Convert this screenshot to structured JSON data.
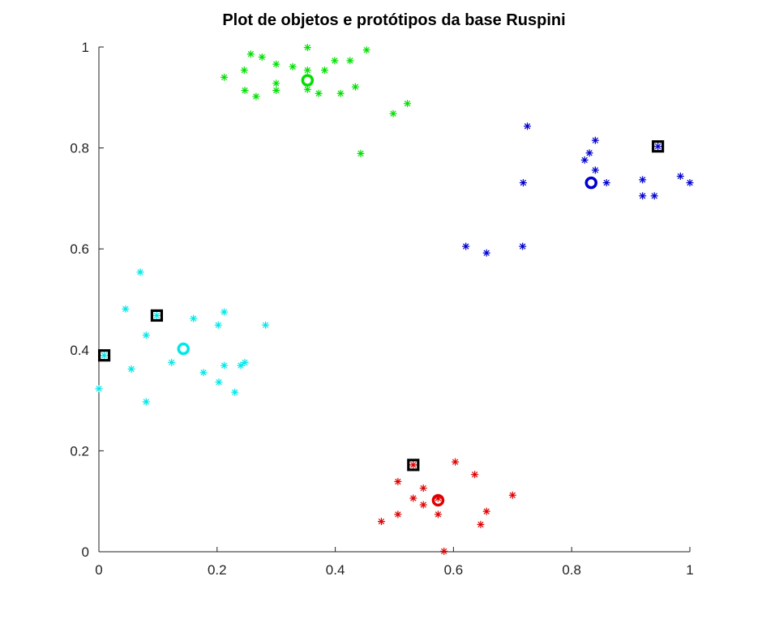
{
  "chart_data": {
    "type": "scatter",
    "title": "Plot de objetos e protótipos da base Ruspini",
    "xlabel": "",
    "ylabel": "",
    "xlim": [
      0,
      1
    ],
    "ylim": [
      0,
      1
    ],
    "xticks": [
      "0",
      "0.2",
      "0.4",
      "0.6",
      "0.8",
      "1"
    ],
    "yticks": [
      "0",
      "0.2",
      "0.4",
      "0.6",
      "0.8",
      "1"
    ],
    "grid": false,
    "series": [
      {
        "color": "#00e000",
        "marker": "asterisk",
        "points": [
          [
            0.212,
            0.94
          ],
          [
            0.246,
            0.954
          ],
          [
            0.257,
            0.986
          ],
          [
            0.276,
            0.98
          ],
          [
            0.3,
            0.966
          ],
          [
            0.328,
            0.961
          ],
          [
            0.353,
            0.999
          ],
          [
            0.353,
            0.954
          ],
          [
            0.382,
            0.954
          ],
          [
            0.399,
            0.973
          ],
          [
            0.425,
            0.973
          ],
          [
            0.453,
            0.994
          ],
          [
            0.247,
            0.914
          ],
          [
            0.266,
            0.902
          ],
          [
            0.3,
            0.928
          ],
          [
            0.3,
            0.914
          ],
          [
            0.353,
            0.916
          ],
          [
            0.372,
            0.908
          ],
          [
            0.409,
            0.908
          ],
          [
            0.434,
            0.921
          ],
          [
            0.498,
            0.868
          ],
          [
            0.522,
            0.888
          ],
          [
            0.443,
            0.789
          ]
        ]
      },
      {
        "color": "#0000d0",
        "marker": "asterisk",
        "points": [
          [
            0.725,
            0.843
          ],
          [
            0.84,
            0.815
          ],
          [
            0.83,
            0.79
          ],
          [
            0.822,
            0.776
          ],
          [
            0.84,
            0.756
          ],
          [
            0.718,
            0.731
          ],
          [
            0.859,
            0.731
          ],
          [
            0.92,
            0.737
          ],
          [
            0.984,
            0.744
          ],
          [
            1.0,
            0.731
          ],
          [
            0.92,
            0.705
          ],
          [
            0.94,
            0.705
          ],
          [
            0.946,
            0.803
          ],
          [
            0.621,
            0.605
          ],
          [
            0.656,
            0.592
          ],
          [
            0.717,
            0.605
          ]
        ]
      },
      {
        "color": "#00e8e8",
        "marker": "asterisk",
        "points": [
          [
            0.07,
            0.554
          ],
          [
            0.045,
            0.481
          ],
          [
            0.098,
            0.468
          ],
          [
            0.16,
            0.462
          ],
          [
            0.212,
            0.475
          ],
          [
            0.202,
            0.449
          ],
          [
            0.282,
            0.449
          ],
          [
            0.08,
            0.429
          ],
          [
            0.009,
            0.389
          ],
          [
            0.123,
            0.375
          ],
          [
            0.212,
            0.369
          ],
          [
            0.24,
            0.369
          ],
          [
            0.247,
            0.375
          ],
          [
            0.055,
            0.362
          ],
          [
            0.177,
            0.355
          ],
          [
            0.203,
            0.336
          ],
          [
            0.23,
            0.316
          ],
          [
            0.0,
            0.323
          ],
          [
            0.08,
            0.297
          ]
        ]
      },
      {
        "color": "#e00000",
        "marker": "asterisk",
        "points": [
          [
            0.532,
            0.172
          ],
          [
            0.603,
            0.178
          ],
          [
            0.636,
            0.153
          ],
          [
            0.506,
            0.139
          ],
          [
            0.549,
            0.126
          ],
          [
            0.7,
            0.112
          ],
          [
            0.532,
            0.106
          ],
          [
            0.574,
            0.106
          ],
          [
            0.549,
            0.093
          ],
          [
            0.656,
            0.08
          ],
          [
            0.506,
            0.074
          ],
          [
            0.574,
            0.074
          ],
          [
            0.478,
            0.06
          ],
          [
            0.646,
            0.054
          ],
          [
            0.584,
            0.001
          ]
        ]
      }
    ],
    "prototypes": [
      {
        "color": "#00e000",
        "point": [
          0.353,
          0.934
        ]
      },
      {
        "color": "#0000d0",
        "point": [
          0.833,
          0.731
        ]
      },
      {
        "color": "#00e8e8",
        "point": [
          0.143,
          0.402
        ]
      },
      {
        "color": "#e00000",
        "point": [
          0.574,
          0.102
        ]
      }
    ],
    "selected_objects": {
      "color": "#000000",
      "marker": "square",
      "points": [
        [
          0.946,
          0.803
        ],
        [
          0.098,
          0.468
        ],
        [
          0.009,
          0.389
        ],
        [
          0.532,
          0.172
        ]
      ]
    }
  }
}
